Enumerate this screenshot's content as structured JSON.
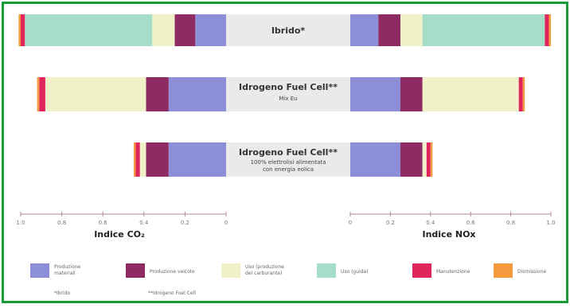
{
  "chart_data": {
    "type": "bar",
    "layout": "diverging-stacked-horizontal",
    "colors": {
      "produzione_materiali": "#8c8fd8",
      "produzione_veicolo": "#8e2b62",
      "uso_produzione_carburante": "#f0f1c8",
      "uso_guida": "#a6ddc8",
      "manutenzione": "#e0245c",
      "dismissione": "#f59a3e",
      "label_box": "#eaeaea",
      "frame": "#1a9a3a"
    },
    "categories": [
      {
        "title": "Ibrido*",
        "subtitle": ""
      },
      {
        "title": "Idrogeno Fuel Cell**",
        "subtitle": "Mix Eu"
      },
      {
        "title": "Idrogeno Fuel Cell**",
        "subtitle": "100% elettrolisi alimentata con energia eolica"
      }
    ],
    "left_axis": {
      "label": "Indice CO₂",
      "direction": "reversed",
      "range": [
        0,
        1
      ],
      "ticks": [
        "1.0",
        "0.8",
        "0.6",
        "0.4",
        "0.2",
        "0"
      ]
    },
    "right_axis": {
      "label": "Indice NOx",
      "range": [
        0,
        1
      ],
      "ticks": [
        "0",
        "0.2",
        "0.4",
        "0.6",
        "0.8",
        "1.0"
      ]
    },
    "series": [
      {
        "name": "Produzione materiali",
        "key": "produzione_materiali",
        "co2": [
          0.15,
          0.28,
          0.28
        ],
        "nox": [
          0.14,
          0.25,
          0.25
        ]
      },
      {
        "name": "Produzione veicolo",
        "key": "produzione_veicolo",
        "co2": [
          0.1,
          0.11,
          0.11
        ],
        "nox": [
          0.11,
          0.11,
          0.11
        ]
      },
      {
        "name": "Uso (produzione del carburante)",
        "key": "uso_produzione_carburante",
        "co2": [
          0.11,
          0.49,
          0.03
        ],
        "nox": [
          0.11,
          0.48,
          0.02
        ]
      },
      {
        "name": "Uso (guida)",
        "key": "uso_guida",
        "co2": [
          0.62,
          0.0,
          0.0
        ],
        "nox": [
          0.61,
          0.0,
          0.0
        ]
      },
      {
        "name": "Manutenzione",
        "key": "manutenzione",
        "co2": [
          0.02,
          0.03,
          0.02
        ],
        "nox": [
          0.02,
          0.02,
          0.02
        ]
      },
      {
        "name": "Dismissione",
        "key": "dismissione",
        "co2": [
          0.01,
          0.01,
          0.01
        ],
        "nox": [
          0.01,
          0.01,
          0.01
        ]
      }
    ],
    "footnotes": [
      "*Ibrido",
      "**Idrogeno Fuel Cell"
    ]
  }
}
